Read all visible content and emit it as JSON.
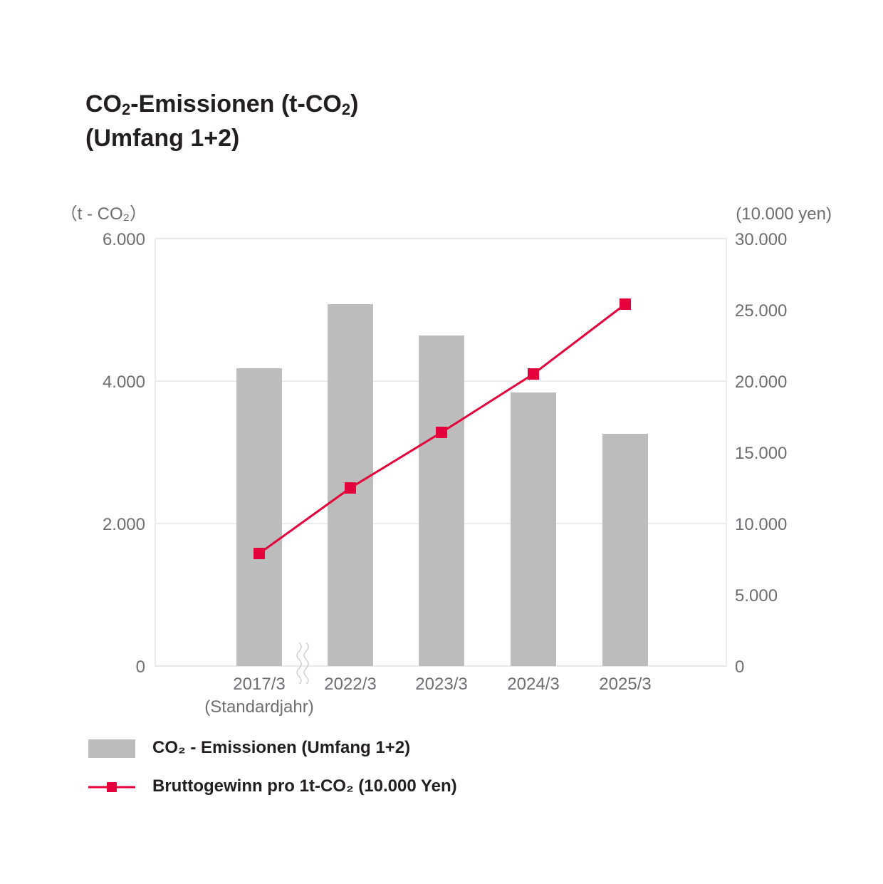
{
  "title": {
    "line1_pre": "CO",
    "line1_sub": "2",
    "line1_mid": "-Emissionen (t-CO",
    "line1_sub2": "2",
    "line1_post": ")",
    "line2": "(Umfang 1+2)"
  },
  "chart_data": {
    "type": "bar+line",
    "title": "CO₂-Emissionen (t-CO₂) (Umfang 1+2)",
    "categories": [
      "2017/3",
      "2022/3",
      "2023/3",
      "2024/3",
      "2025/3"
    ],
    "category_note": "(Standardjahr)",
    "left_axis": {
      "unit_label": "（t - CO₂）",
      "ylim": [
        0,
        6000
      ],
      "ticks": [
        "0",
        "2.000",
        "4.000",
        "6.000"
      ],
      "tick_values": [
        0,
        2000,
        4000,
        6000
      ]
    },
    "right_axis": {
      "unit_label": "(10.000 yen)",
      "ylim": [
        0,
        30000
      ],
      "ticks": [
        "0",
        "5.000",
        "10.000",
        "15.000",
        "20.000",
        "25.000",
        "30.000"
      ],
      "tick_values": [
        0,
        5000,
        10000,
        15000,
        20000,
        25000,
        30000
      ]
    },
    "series": [
      {
        "name": "CO₂ - Emissionen (Umfang 1+2)",
        "type": "bar",
        "axis": "left",
        "color": "#bcbcbc",
        "values": [
          4180,
          5080,
          4640,
          3840,
          3260
        ]
      },
      {
        "name": "Bruttogewinn pro 1t-CO₂ (10.000 Yen)",
        "type": "line",
        "axis": "right",
        "color": "#e4003a",
        "values": [
          7900,
          12500,
          16400,
          20500,
          25400
        ]
      }
    ],
    "gridlines": true,
    "axis_break_after_first_category": true
  },
  "legend": {
    "bar_label": "CO₂ - Emissionen (Umfang 1+2)",
    "line_label": "Bruttogewinn pro 1t-CO₂ (10.000 Yen)"
  }
}
